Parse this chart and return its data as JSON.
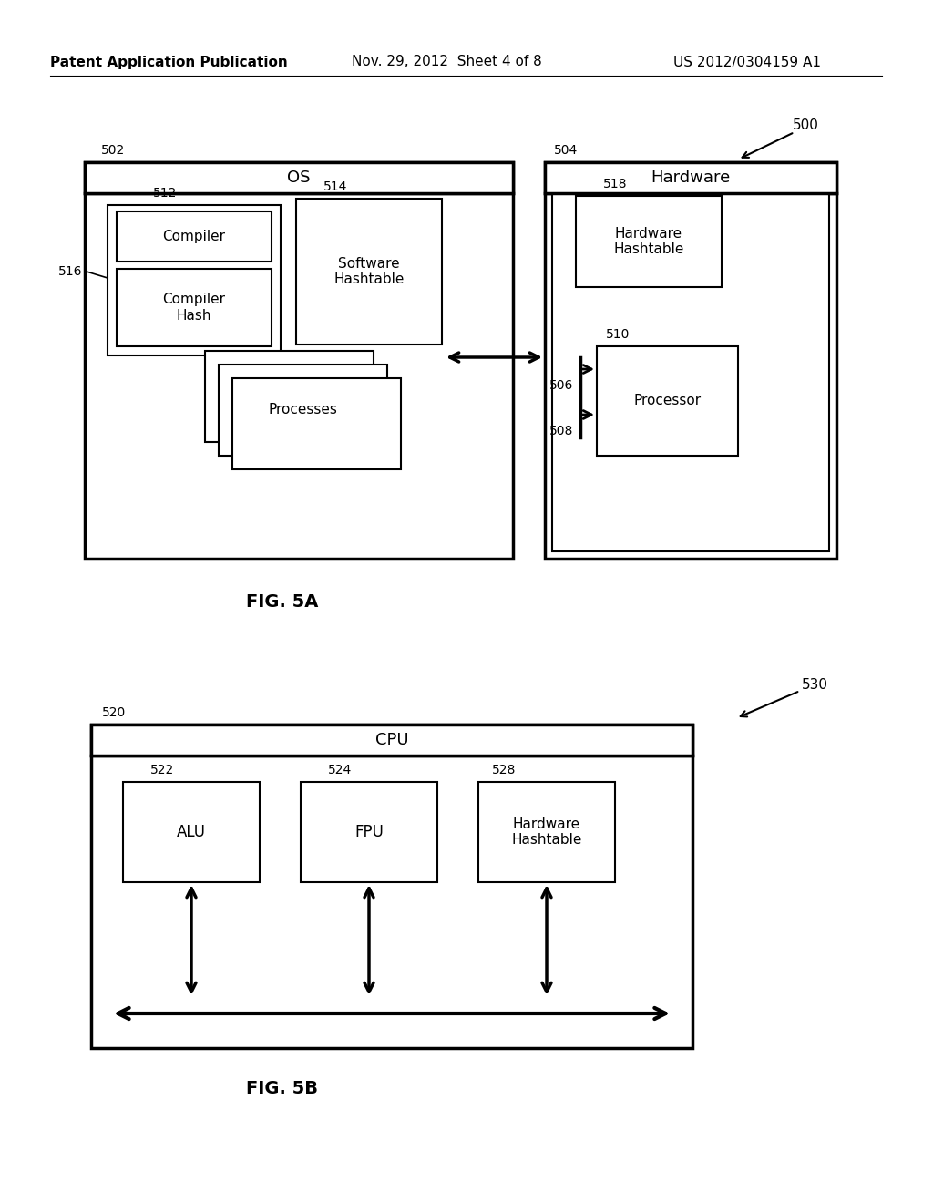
{
  "bg_color": "#ffffff",
  "header_left": "Patent Application Publication",
  "header_mid": "Nov. 29, 2012  Sheet 4 of 8",
  "header_right": "US 2012/0304159 A1",
  "fig5a_label": "FIG. 5A",
  "fig5b_label": "FIG. 5B",
  "label_500": "500",
  "label_502": "502",
  "label_504": "504",
  "label_506": "506",
  "label_508": "508",
  "label_510": "510",
  "label_512": "512",
  "label_514": "514",
  "label_516": "516",
  "label_518": "518",
  "label_520": "520",
  "label_522": "522",
  "label_524": "524",
  "label_528": "528",
  "label_530": "530",
  "os_label": "OS",
  "hardware_label": "Hardware",
  "compiler_label": "Compiler",
  "compiler_hash_label": "Compiler\nHash",
  "software_hashtable_label": "Software\nHashtable",
  "processes_label": "Processes",
  "processor_label": "Processor",
  "hardware_hashtable_label": "Hardware\nHashtable",
  "cpu_label": "CPU",
  "alu_label": "ALU",
  "fpu_label": "FPU",
  "hw_hashtable2_label": "Hardware\nHashtable"
}
